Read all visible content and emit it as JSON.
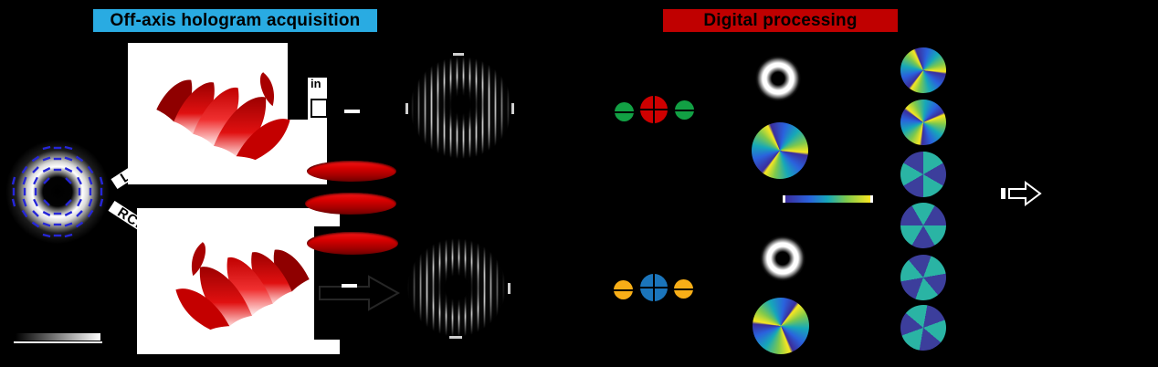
{
  "figure": {
    "banners": {
      "acquisition": {
        "label": "Off-axis hologram acquisition",
        "bg": "#29abe2"
      },
      "processing": {
        "label": "Digital processing",
        "bg": "#c00000"
      }
    },
    "beam_labels": {
      "lcp": "LCP",
      "rcp": "RCP"
    },
    "annotations": {
      "interference_partial": "in"
    },
    "colors": {
      "banner_acquisition": "#29abe2",
      "banner_processing": "#c00000",
      "beam_arrow": "#2626d8",
      "lens_red": "#d80000",
      "spectrum_top_dc": "#ce0000",
      "spectrum_top_sidebands": "#12a044",
      "spectrum_bottom_dc": "#1b75bb",
      "spectrum_bottom_sidebands": "#f8ae17",
      "sector_wheel_teal": "#2ab4a4",
      "sector_wheel_indigo": "#3c3e9c",
      "phase_colormap": [
        "#3b2d9c",
        "#2a62dd",
        "#16a8b8",
        "#7fc94c",
        "#f9e721"
      ],
      "intensity_colormap": [
        "#000000",
        "#ffffff"
      ]
    }
  }
}
